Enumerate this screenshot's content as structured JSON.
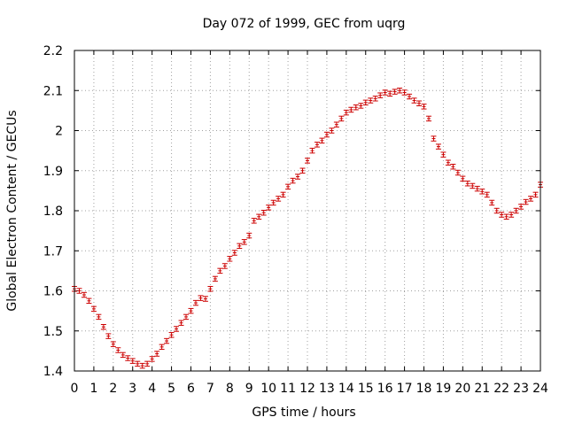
{
  "chart_data": {
    "type": "scatter",
    "title": "Day 072 of 1999, GEC from uqrg",
    "xlabel": "GPS time / hours",
    "ylabel": "Global Electron Content / GECUs",
    "xlim": [
      0,
      24
    ],
    "ylim": [
      1.4,
      2.2
    ],
    "grid": true,
    "x_ticks": [
      "0",
      "1",
      "2",
      "3",
      "4",
      "5",
      "6",
      "7",
      "8",
      "9",
      "10",
      "11",
      "12",
      "13",
      "14",
      "15",
      "16",
      "17",
      "18",
      "19",
      "20",
      "21",
      "22",
      "23",
      "24"
    ],
    "y_ticks": [
      "1.4",
      "1.5",
      "1.6",
      "1.7",
      "1.8",
      "1.9",
      "2",
      "2.1",
      "2.2"
    ],
    "series_color": "#cc0000",
    "error_bar_half_width": 0.006,
    "x": [
      0,
      0.25,
      0.5,
      0.75,
      1,
      1.25,
      1.5,
      1.75,
      2,
      2.25,
      2.5,
      2.75,
      3,
      3.25,
      3.5,
      3.75,
      4,
      4.25,
      4.5,
      4.75,
      5,
      5.25,
      5.5,
      5.75,
      6,
      6.25,
      6.5,
      6.75,
      7,
      7.25,
      7.5,
      7.75,
      8,
      8.25,
      8.5,
      8.75,
      9,
      9.25,
      9.5,
      9.75,
      10,
      10.25,
      10.5,
      10.75,
      11,
      11.25,
      11.5,
      11.75,
      12,
      12.25,
      12.5,
      12.75,
      13,
      13.25,
      13.5,
      13.75,
      14,
      14.25,
      14.5,
      14.75,
      15,
      15.25,
      15.5,
      15.75,
      16,
      16.25,
      16.5,
      16.75,
      17,
      17.25,
      17.5,
      17.75,
      18,
      18.25,
      18.5,
      18.75,
      19,
      19.25,
      19.5,
      19.75,
      20,
      20.25,
      20.5,
      20.75,
      21,
      21.25,
      21.5,
      21.75,
      22,
      22.25,
      22.5,
      22.75,
      23,
      23.25,
      23.5,
      23.75,
      24
    ],
    "y": [
      1.605,
      1.6,
      1.59,
      1.575,
      1.555,
      1.535,
      1.51,
      1.487,
      1.467,
      1.452,
      1.44,
      1.432,
      1.425,
      1.418,
      1.413,
      1.418,
      1.43,
      1.443,
      1.46,
      1.475,
      1.49,
      1.505,
      1.52,
      1.535,
      1.55,
      1.57,
      1.582,
      1.58,
      1.605,
      1.63,
      1.65,
      1.662,
      1.68,
      1.695,
      1.712,
      1.722,
      1.738,
      1.775,
      1.785,
      1.795,
      1.808,
      1.82,
      1.83,
      1.84,
      1.86,
      1.875,
      1.885,
      1.9,
      1.925,
      1.95,
      1.965,
      1.975,
      1.99,
      2.0,
      2.015,
      2.03,
      2.045,
      2.052,
      2.058,
      2.062,
      2.07,
      2.075,
      2.08,
      2.088,
      2.095,
      2.092,
      2.097,
      2.1,
      2.095,
      2.085,
      2.075,
      2.068,
      2.06,
      2.03,
      1.98,
      1.96,
      1.94,
      1.92,
      1.91,
      1.895,
      1.88,
      1.868,
      1.862,
      1.855,
      1.848,
      1.84,
      1.82,
      1.8,
      1.79,
      1.785,
      1.79,
      1.8,
      1.81,
      1.822,
      1.83,
      1.84,
      1.865
    ]
  }
}
